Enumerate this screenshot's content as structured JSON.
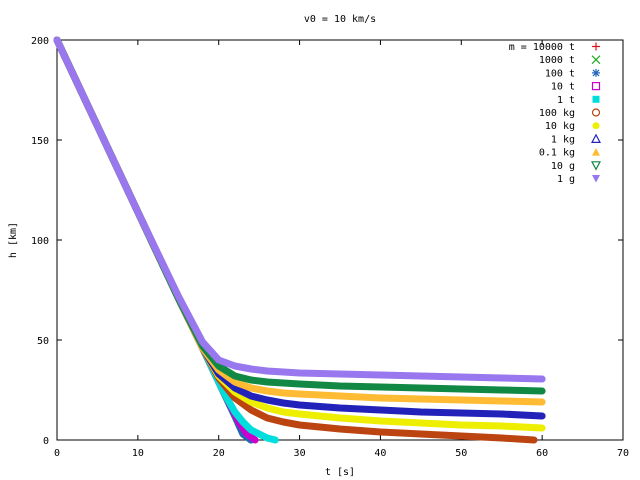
{
  "chart_data": {
    "type": "scatter",
    "title": "v0 = 10 km/s",
    "xlabel": "t [s]",
    "ylabel": "h [km]",
    "xlim": [
      0,
      70
    ],
    "ylim": [
      0,
      200
    ],
    "xticks": [
      "0",
      "10",
      "20",
      "30",
      "40",
      "50",
      "60",
      "70"
    ],
    "yticks": [
      "0",
      "50",
      "100",
      "150",
      "200"
    ],
    "grid": false,
    "legend_position": "top-right",
    "series": [
      {
        "name": "m = 10000 t",
        "color": "#dd1111",
        "marker": "plus",
        "x": [
          0,
          5,
          10,
          15,
          18,
          20,
          22,
          23,
          24
        ],
        "y": [
          200,
          157,
          114,
          71,
          46,
          29,
          12,
          3,
          0
        ]
      },
      {
        "name": "1000 t",
        "color": "#22aa22",
        "marker": "cross",
        "x": [
          0,
          5,
          10,
          15,
          18,
          20,
          22,
          23,
          24
        ],
        "y": [
          200,
          157,
          114,
          71,
          46,
          29,
          12,
          3,
          0
        ]
      },
      {
        "name": "100 t",
        "color": "#2266bb",
        "marker": "star",
        "x": [
          0,
          5,
          10,
          15,
          18,
          20,
          22,
          23,
          24
        ],
        "y": [
          200,
          157,
          114,
          71,
          46,
          29,
          12,
          3,
          0
        ]
      },
      {
        "name": "10 t",
        "color": "#cc00cc",
        "marker": "open-square",
        "x": [
          0,
          5,
          10,
          15,
          18,
          20,
          21.5,
          22.5,
          23.5,
          24.5
        ],
        "y": [
          200,
          157,
          114,
          71,
          46,
          29,
          17,
          9,
          3,
          0
        ]
      },
      {
        "name": "1 t",
        "color": "#00dddd",
        "marker": "filled-square",
        "x": [
          0,
          5,
          10,
          15,
          18,
          20,
          21,
          22,
          23,
          24,
          25,
          26,
          27
        ],
        "y": [
          200,
          157,
          114,
          71,
          46,
          29,
          21,
          14,
          9,
          5,
          3,
          1,
          0
        ]
      },
      {
        "name": "100 kg",
        "color": "#bb4411",
        "marker": "open-circle",
        "x": [
          0,
          5,
          10,
          15,
          18,
          20,
          22,
          24,
          26,
          28,
          30,
          35,
          40,
          45,
          50,
          55,
          59
        ],
        "y": [
          200,
          157,
          114,
          71,
          46,
          31,
          21,
          15,
          11,
          9,
          7.5,
          5.5,
          4,
          3,
          2,
          1,
          0
        ]
      },
      {
        "name": "10 kg",
        "color": "#eeee00",
        "marker": "filled-circle",
        "x": [
          0,
          5,
          10,
          15,
          18,
          20,
          22,
          24,
          26,
          28,
          30,
          35,
          40,
          45,
          50,
          55,
          60
        ],
        "y": [
          200,
          157,
          114,
          71,
          46,
          32,
          24,
          19,
          16,
          14,
          13,
          11,
          9.5,
          8.5,
          7.5,
          7,
          6
        ]
      },
      {
        "name": "1 kg",
        "color": "#2222bb",
        "marker": "open-triangle",
        "x": [
          0,
          5,
          10,
          15,
          18,
          20,
          22,
          24,
          26,
          28,
          30,
          35,
          40,
          45,
          50,
          55,
          60
        ],
        "y": [
          200,
          157,
          114,
          71,
          46,
          33,
          26,
          22,
          20,
          18.5,
          17.5,
          16,
          15,
          14,
          13.5,
          13,
          12
        ]
      },
      {
        "name": "0.1 kg",
        "color": "#ffbb33",
        "marker": "filled-triangle",
        "x": [
          0,
          5,
          10,
          15,
          18,
          20,
          22,
          24,
          26,
          28,
          30,
          35,
          40,
          45,
          50,
          55,
          60
        ],
        "y": [
          200,
          157,
          114,
          71,
          46,
          35,
          29,
          26,
          24.5,
          23.5,
          23,
          22,
          21,
          20.5,
          20,
          19.5,
          19
        ]
      },
      {
        "name": "10 g",
        "color": "#118844",
        "marker": "open-triangle-down",
        "x": [
          0,
          5,
          10,
          15,
          18,
          20,
          22,
          24,
          26,
          28,
          30,
          35,
          40,
          45,
          50,
          55,
          60
        ],
        "y": [
          200,
          157,
          114,
          71,
          47,
          37,
          32,
          30,
          29,
          28.5,
          28,
          27,
          26.5,
          26,
          25.5,
          25,
          24.5
        ]
      },
      {
        "name": "1 g",
        "color": "#9977ee",
        "marker": "filled-triangle-down",
        "x": [
          0,
          5,
          10,
          15,
          18,
          20,
          22,
          24,
          26,
          28,
          30,
          35,
          40,
          45,
          50,
          55,
          60
        ],
        "y": [
          200,
          157,
          114,
          72,
          49,
          40,
          37,
          35.5,
          34.5,
          34,
          33.5,
          33,
          32.5,
          32,
          31.5,
          31,
          30.5
        ]
      }
    ]
  }
}
